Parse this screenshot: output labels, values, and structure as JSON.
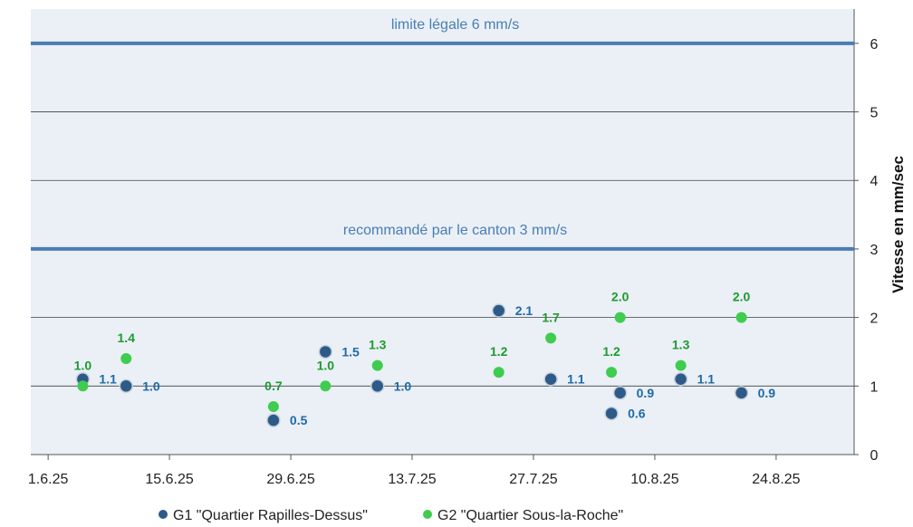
{
  "chart_data": {
    "type": "scatter",
    "ylabel": "Vitesse en mm/sec",
    "xlabel": "",
    "title": "",
    "ylim": [
      0,
      6.5
    ],
    "y_ticks": [
      "0",
      "1",
      "2",
      "3",
      "4",
      "5",
      "6"
    ],
    "xlim": [
      "2025-05-30",
      "2025-09-02"
    ],
    "x_ticks": [
      {
        "date": "2025-06-01",
        "label": "1.6.25"
      },
      {
        "date": "2025-06-15",
        "label": "15.6.25"
      },
      {
        "date": "2025-06-29",
        "label": "29.6.25"
      },
      {
        "date": "2025-07-13",
        "label": "13.7.25"
      },
      {
        "date": "2025-07-27",
        "label": "27.7.25"
      },
      {
        "date": "2025-08-10",
        "label": "10.8.25"
      },
      {
        "date": "2025-08-24",
        "label": "24.8.25"
      }
    ],
    "y_axis_position": "right",
    "grid": true,
    "legend_position": "bottom",
    "reference_lines": [
      {
        "value": 6,
        "label": "limite légale 6 mm/s"
      },
      {
        "value": 3,
        "label": "recommandé par le canton 3 mm/s"
      }
    ],
    "series": [
      {
        "name": "G1 \"Quartier Rapilles-Dessus\"",
        "color": "#2e5a88",
        "label_color": "#1f6aa8",
        "points": [
          {
            "x": "2025-06-05",
            "y": 1.1,
            "label": "1.1"
          },
          {
            "x": "2025-06-10",
            "y": 1.0,
            "label": "1.0"
          },
          {
            "x": "2025-06-27",
            "y": 0.5,
            "label": "0.5"
          },
          {
            "x": "2025-07-03",
            "y": 1.5,
            "label": "1.5"
          },
          {
            "x": "2025-07-09",
            "y": 1.0,
            "label": "1.0"
          },
          {
            "x": "2025-07-23",
            "y": 2.1,
            "label": "2.1"
          },
          {
            "x": "2025-07-29",
            "y": 1.1,
            "label": "1.1"
          },
          {
            "x": "2025-08-05",
            "y": 0.6,
            "label": "0.6"
          },
          {
            "x": "2025-08-06",
            "y": 0.9,
            "label": "0.9"
          },
          {
            "x": "2025-08-13",
            "y": 1.1,
            "label": "1.1"
          },
          {
            "x": "2025-08-20",
            "y": 0.9,
            "label": "0.9"
          }
        ]
      },
      {
        "name": "G2 \"Quartier Sous-la-Roche\"",
        "color": "#3fcc4f",
        "label_color": "#1f9a2f",
        "points": [
          {
            "x": "2025-06-05",
            "y": 1.0,
            "label": "1.0"
          },
          {
            "x": "2025-06-10",
            "y": 1.4,
            "label": "1.4"
          },
          {
            "x": "2025-06-27",
            "y": 0.7,
            "label": "0.7"
          },
          {
            "x": "2025-07-03",
            "y": 1.0,
            "label": "1.0"
          },
          {
            "x": "2025-07-09",
            "y": 1.3,
            "label": "1.3"
          },
          {
            "x": "2025-07-23",
            "y": 1.2,
            "label": "1.2"
          },
          {
            "x": "2025-07-29",
            "y": 1.7,
            "label": "1.7"
          },
          {
            "x": "2025-08-05",
            "y": 1.2,
            "label": "1.2"
          },
          {
            "x": "2025-08-06",
            "y": 2.0,
            "label": "2.0"
          },
          {
            "x": "2025-08-13",
            "y": 1.3,
            "label": "1.3"
          },
          {
            "x": "2025-08-20",
            "y": 2.0,
            "label": "2.0"
          }
        ]
      }
    ],
    "colors": {
      "plot_background": "#eaf0f5",
      "gridline": "#404040",
      "reference_line": "#4a7db5",
      "reference_label": "#4a7db5"
    }
  }
}
